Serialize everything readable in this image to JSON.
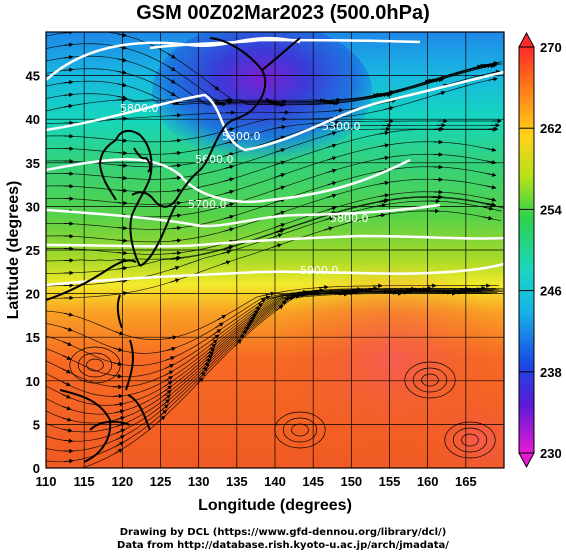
{
  "title": "GSM 00Z02Mar2023 (500.0hPa)",
  "x_axis": {
    "label": "Longitude (degrees)",
    "min": 110,
    "max": 170,
    "ticks": [
      "110",
      "115",
      "120",
      "125",
      "130",
      "135",
      "140",
      "145",
      "150",
      "155",
      "160",
      "165"
    ]
  },
  "y_axis": {
    "label": "Latitude (degrees)",
    "min": 0,
    "max": 50,
    "ticks": [
      "0",
      "5",
      "10",
      "15",
      "20",
      "25",
      "30",
      "35",
      "40",
      "45"
    ]
  },
  "colorbar": {
    "min": 230,
    "max": 270,
    "labels": [
      "270",
      "262",
      "254",
      "246",
      "238",
      "230"
    ]
  },
  "contour_labels": [
    "5300.0",
    "5300.0",
    "5600.0",
    "5700.0",
    "5800.0",
    "5900.0",
    "5800.0"
  ],
  "credits": {
    "line1": "Drawing by DCL (https://www.gfd-dennou.org/library/dcl/)",
    "line2": "Data from http://database.rish.kyoto-u.ac.jp/arch/jmadata/"
  }
}
